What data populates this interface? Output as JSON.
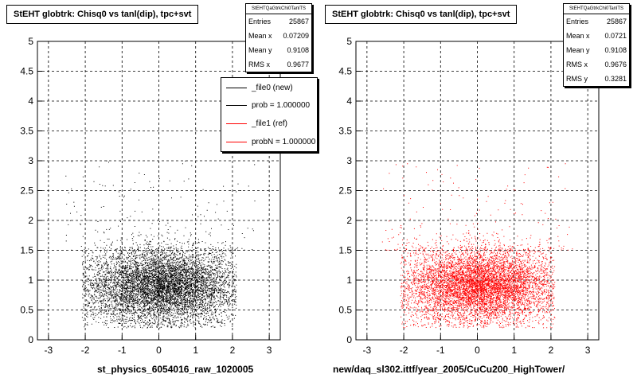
{
  "colors": {
    "black": "#000000",
    "red": "#ff0000",
    "grid": "#000000"
  },
  "footer_text": "",
  "chart_data": [
    {
      "type": "scatter",
      "title": "StEHT globtrk: Chisq0 vs tanl(dip), tpc+svt",
      "xlabel": "st_physics_6054016_raw_1020005",
      "ylabel": "",
      "xlim": [
        -3.3,
        3.3
      ],
      "ylim": [
        0,
        5
      ],
      "xticks": [
        "-3",
        "-2",
        "-1",
        "0",
        "1",
        "2",
        "3"
      ],
      "yticks": [
        "0",
        "0.5",
        "1",
        "1.5",
        "2",
        "2.5",
        "3",
        "3.5",
        "4",
        "4.5",
        "5"
      ],
      "grid": true,
      "marker_color": "#000000",
      "stats": {
        "name": "StEHTQaGtrkChi0TanlTS",
        "rows": [
          {
            "label": "Entries",
            "value": "25867"
          },
          {
            "label": "Mean x",
            "value": "0.07209"
          },
          {
            "label": "Mean y",
            "value": "0.9108"
          },
          {
            "label": "RMS x",
            "value": "0.9677"
          }
        ]
      },
      "legend": [
        {
          "label": "_file0 (new)",
          "color": "#000000"
        },
        {
          "label": "prob = 1.000000",
          "color": "#000000"
        },
        {
          "label": "_file1 (ref)",
          "color": "#ff0000"
        },
        {
          "label": "probN = 1.000000",
          "color": "#ff0000"
        }
      ],
      "distribution": {
        "entries": 25867,
        "mean_x": 0.07209,
        "mean_y": 0.9108,
        "rms_x": 0.9677,
        "rms_y": 0.3281
      }
    },
    {
      "type": "scatter",
      "title": "StEHT globtrk: Chisq0 vs tanl(dip), tpc+svt",
      "xlabel": "new/daq_sl302.ittf/year_2005/CuCu200_HighTower/",
      "ylabel": "",
      "xlim": [
        -3.3,
        3.3
      ],
      "ylim": [
        0,
        5
      ],
      "xticks": [
        "-3",
        "-2",
        "-1",
        "0",
        "1",
        "2",
        "3"
      ],
      "yticks": [
        "0",
        "0.5",
        "1",
        "1.5",
        "2",
        "2.5",
        "3",
        "3.5",
        "4",
        "4.5",
        "5"
      ],
      "grid": true,
      "marker_color": "#ff0000",
      "stats": {
        "name": "StEHTQaGtrkChi0TanlTS",
        "rows": [
          {
            "label": "Entries",
            "value": "25867"
          },
          {
            "label": "Mean x",
            "value": "0.0721"
          },
          {
            "label": "Mean y",
            "value": "0.9108"
          },
          {
            "label": "RMS x",
            "value": "0.9676"
          },
          {
            "label": "RMS y",
            "value": "0.3281"
          }
        ]
      },
      "distribution": {
        "entries": 25867,
        "mean_x": 0.0721,
        "mean_y": 0.9108,
        "rms_x": 0.9676,
        "rms_y": 0.3281
      }
    }
  ]
}
